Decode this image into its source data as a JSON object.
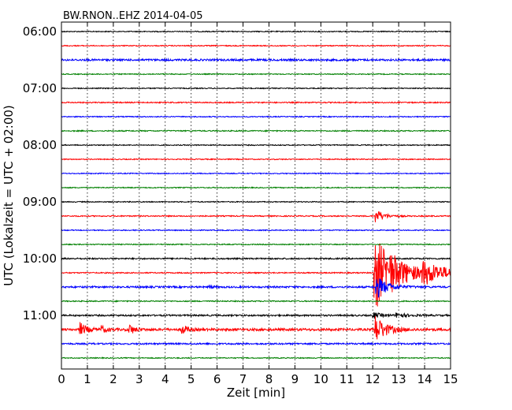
{
  "chart_data": {
    "type": "line",
    "title": "BW.RNON..EHZ 2014-04-05",
    "xlabel": "Zeit  [min]",
    "ylabel": "UTC (Lokalzeit = UTC + 02:00)",
    "xlim": [
      0,
      15
    ],
    "x_ticks": [
      "0",
      "1",
      "2",
      "3",
      "4",
      "5",
      "6",
      "7",
      "8",
      "9",
      "10",
      "11",
      "12",
      "13",
      "14",
      "15"
    ],
    "y_ticks": [
      {
        "row": 0,
        "label": "06:00"
      },
      {
        "row": 4,
        "label": "07:00"
      },
      {
        "row": 8,
        "label": "08:00"
      },
      {
        "row": 12,
        "label": "09:00"
      },
      {
        "row": 16,
        "label": "10:00"
      },
      {
        "row": 20,
        "label": "11:00"
      }
    ],
    "grid": "vertical dotted",
    "trace_colors": [
      "#000000",
      "#ff0000",
      "#0000ff",
      "#008000"
    ],
    "rows": [
      {
        "start": "06:00",
        "color": "#000000",
        "amp": 0.6
      },
      {
        "start": "06:15",
        "color": "#ff0000",
        "amp": 0.6
      },
      {
        "start": "06:30",
        "color": "#0000ff",
        "amp": 1.2
      },
      {
        "start": "06:45",
        "color": "#008000",
        "amp": 0.6
      },
      {
        "start": "07:00",
        "color": "#000000",
        "amp": 0.6
      },
      {
        "start": "07:15",
        "color": "#ff0000",
        "amp": 0.7
      },
      {
        "start": "07:30",
        "color": "#0000ff",
        "amp": 0.6
      },
      {
        "start": "07:45",
        "color": "#008000",
        "amp": 0.7
      },
      {
        "start": "08:00",
        "color": "#000000",
        "amp": 0.6
      },
      {
        "start": "08:15",
        "color": "#ff0000",
        "amp": 0.6
      },
      {
        "start": "08:30",
        "color": "#0000ff",
        "amp": 0.6
      },
      {
        "start": "08:45",
        "color": "#008000",
        "amp": 0.6
      },
      {
        "start": "09:00",
        "color": "#000000",
        "amp": 0.6
      },
      {
        "start": "09:15",
        "color": "#ff0000",
        "amp": 0.7,
        "events": [
          {
            "t": 12.1,
            "peak": 9,
            "dur": 0.3
          }
        ]
      },
      {
        "start": "09:30",
        "color": "#0000ff",
        "amp": 0.6
      },
      {
        "start": "09:45",
        "color": "#008000",
        "amp": 0.6
      },
      {
        "start": "10:00",
        "color": "#000000",
        "amp": 0.9
      },
      {
        "start": "10:15",
        "color": "#ff0000",
        "amp": 0.7,
        "events": [
          {
            "t": 12.05,
            "peak": 55,
            "dur": 0.6
          },
          {
            "t": 12.6,
            "peak": 10,
            "dur": 1.2
          },
          {
            "t": 13.9,
            "peak": 12,
            "dur": 0.9
          }
        ]
      },
      {
        "start": "10:30",
        "color": "#0000ff",
        "amp": 1.1,
        "events": [
          {
            "t": 12.1,
            "peak": 16,
            "dur": 0.4
          },
          {
            "t": 5.7,
            "peak": 3,
            "dur": 0.1
          }
        ]
      },
      {
        "start": "10:45",
        "color": "#008000",
        "amp": 0.7
      },
      {
        "start": "11:00",
        "color": "#000000",
        "amp": 1.0,
        "events": [
          {
            "t": 12.0,
            "peak": 4,
            "dur": 0.3
          },
          {
            "t": 12.9,
            "peak": 3,
            "dur": 0.4
          }
        ]
      },
      {
        "start": "11:15",
        "color": "#ff0000",
        "amp": 1.5,
        "events": [
          {
            "t": 0.7,
            "peak": 9,
            "dur": 0.25
          },
          {
            "t": 1.5,
            "peak": 5,
            "dur": 0.2
          },
          {
            "t": 2.6,
            "peak": 7,
            "dur": 0.2
          },
          {
            "t": 4.6,
            "peak": 8,
            "dur": 0.2
          },
          {
            "t": 12.05,
            "peak": 20,
            "dur": 0.4
          }
        ]
      },
      {
        "start": "11:30",
        "color": "#0000ff",
        "amp": 1.0
      },
      {
        "start": "11:45",
        "color": "#008000",
        "amp": 0.6
      }
    ]
  }
}
